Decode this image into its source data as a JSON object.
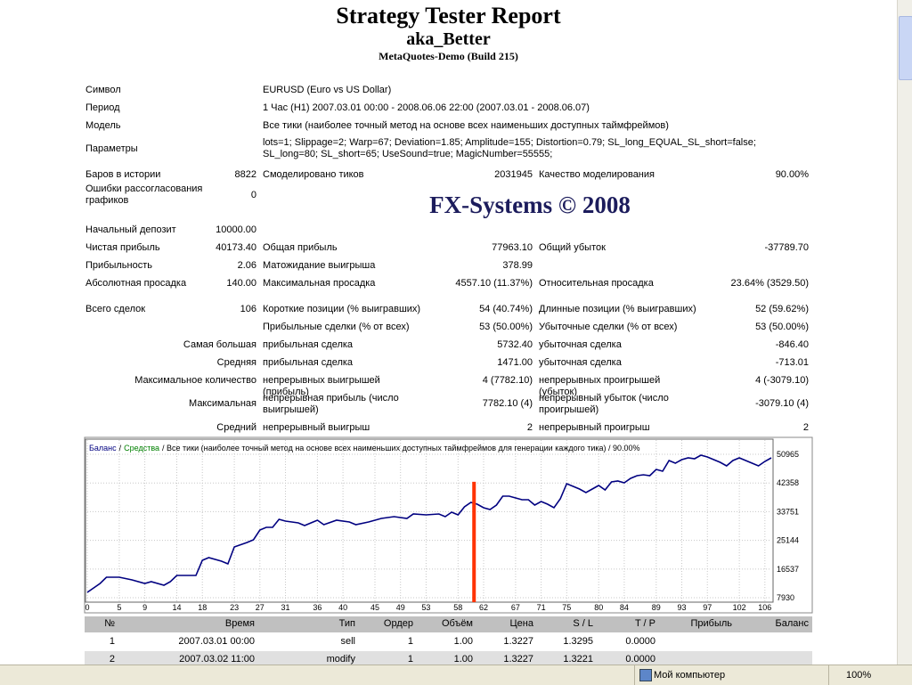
{
  "header": {
    "title": "Strategy Tester Report",
    "subtitle": "aka_Better",
    "build": "MetaQuotes-Demo (Build 215)"
  },
  "watermark": "FX-Systems © 2008",
  "summary": {
    "general": [
      [
        "Символ",
        "EURUSD (Euro vs US Dollar)"
      ],
      [
        "Период",
        "1 Час (H1) 2007.03.01 00:00 - 2008.06.06 22:00 (2007.03.01 - 2008.06.07)"
      ],
      [
        "Модель",
        "Все тики (наиболее точный метод на основе всех наименьших доступных таймфреймов)"
      ],
      [
        "Параметры",
        "lots=1; Slippage=2; Warp=67; Deviation=1.85; Amplitude=155; Distortion=0.79; SL_long_EQUAL_SL_short=false; SL_long=80; SL_short=65; UseSound=true; MagicNumber=55555;"
      ]
    ],
    "stats": [
      [
        "Баров в истории",
        "8822",
        "Смоделировано тиков",
        "2031945",
        "Качество моделирования",
        "90.00%"
      ],
      [
        "Ошибки рассогласования графиков",
        "0",
        null,
        null,
        null,
        null
      ],
      [
        "Начальный депозит",
        "10000.00",
        null,
        null,
        null,
        null
      ],
      [
        "Чистая прибыль",
        "40173.40",
        "Общая прибыль",
        "77963.10",
        "Общий убыток",
        "-37789.70"
      ],
      [
        "Прибыльность",
        "2.06",
        "Матожидание выигрыша",
        "378.99",
        null,
        null
      ],
      [
        "Абсолютная просадка",
        "140.00",
        "Максимальная просадка",
        "4557.10 (11.37%)",
        "Относительная просадка",
        "23.64% (3529.50)"
      ],
      [
        "Всего сделок",
        "106",
        "Короткие позиции (% выигравших)",
        "54 (40.74%)",
        "Длинные позиции (% выигравших)",
        "52 (59.62%)"
      ],
      [
        null,
        null,
        "Прибыльные сделки (% от всех)",
        "53 (50.00%)",
        "Убыточные сделки (% от всех)",
        "53 (50.00%)"
      ]
    ],
    "trades": [
      [
        "Самая большая",
        "прибыльная сделка",
        "5732.40",
        "убыточная сделка",
        "-846.40"
      ],
      [
        "Средняя",
        "прибыльная сделка",
        "1471.00",
        "убыточная сделка",
        "-713.01"
      ],
      [
        "Максимальное количество",
        "непрерывных выигрышей (прибыль)",
        "4 (7782.10)",
        "непрерывных проигрышей (убыток)",
        "4 (-3079.10)"
      ],
      [
        "Максимальная",
        "непрерывная прибыль (число выигрышей)",
        "7782.10 (4)",
        "непрерывный убыток (число проигрышей)",
        "-3079.10 (4)"
      ],
      [
        "Средний",
        "непрерывный выигрыш",
        "2",
        "непрерывный проигрыш",
        "2"
      ]
    ]
  },
  "chart_data": {
    "type": "line",
    "separator": "/",
    "caption": "/ Все тики (наиболее точный метод на основе всех наименьших доступных таймфреймов для генерации каждого тика) / 90.00%",
    "x": [
      0,
      2,
      3,
      5,
      7,
      9,
      10,
      12,
      13,
      14,
      17,
      18,
      19,
      21,
      22,
      23,
      25,
      26,
      27,
      28,
      29,
      30,
      31,
      33,
      34,
      35,
      36,
      37,
      39,
      41,
      42,
      44,
      46,
      48,
      50,
      51,
      53,
      55,
      56,
      57,
      58,
      59,
      60,
      61,
      62,
      63,
      64,
      65,
      66,
      67,
      68,
      69,
      70,
      71,
      72,
      73,
      74,
      75,
      76,
      77,
      78,
      79,
      80,
      81,
      82,
      83,
      84,
      85,
      86,
      87,
      88,
      89,
      90,
      91,
      92,
      93,
      94,
      95,
      96,
      97,
      98,
      99,
      100,
      101,
      102,
      103,
      104,
      105,
      106,
      107
    ],
    "series": [
      {
        "name": "Баланс",
        "color": "#000080",
        "values": [
          9534,
          12207,
          14078,
          14078,
          13276,
          12207,
          12741,
          11672,
          12741,
          14613,
          14613,
          19157,
          19959,
          18889,
          18087,
          23166,
          24503,
          25305,
          28245,
          29047,
          29047,
          31452,
          30918,
          30383,
          29581,
          30383,
          31185,
          29849,
          31185,
          30651,
          29849,
          30651,
          31720,
          32254,
          31720,
          33056,
          32789,
          33056,
          32254,
          33591,
          32789,
          35195,
          36531,
          35997,
          34927,
          34393,
          35729,
          38402,
          38402,
          37868,
          37333,
          37333,
          35729,
          36799,
          35997,
          34927,
          37600,
          42144,
          41343,
          40541,
          39471,
          40541,
          41610,
          40273,
          42679,
          42946,
          42412,
          43748,
          44550,
          44817,
          44550,
          46421,
          45887,
          49094,
          48292,
          49362,
          49896,
          49629,
          50698,
          50163,
          49362,
          48560,
          47490,
          49094,
          49896,
          49094,
          48292,
          47490,
          48827,
          49896
        ]
      },
      {
        "name": "Средства",
        "color": "#008000"
      }
    ],
    "marker": {
      "x": 60.5,
      "y": 42700,
      "color": "#ff3300"
    },
    "xlim": [
      0,
      107
    ],
    "xticks": [
      0,
      5,
      9,
      14,
      18,
      23,
      27,
      31,
      36,
      40,
      45,
      49,
      53,
      58,
      62,
      67,
      71,
      75,
      80,
      84,
      89,
      93,
      97,
      102,
      106
    ],
    "ylim": [
      6600,
      55240
    ],
    "yticks": [
      7930,
      16537,
      25144,
      33751,
      42358,
      50965
    ],
    "grid": true
  },
  "orders": {
    "columns": [
      "№",
      "Время",
      "Тип",
      "Ордер",
      "Объём",
      "Цена",
      "S / L",
      "T / P",
      "Прибыль",
      "Баланс"
    ],
    "rows": [
      [
        "1",
        "2007.03.01 00:00",
        "sell",
        "1",
        "1.00",
        "1.3227",
        "1.3295",
        "0.0000"
      ],
      [
        "2",
        "2007.03.02 11:00",
        "modify",
        "1",
        "1.00",
        "1.3227",
        "1.3221",
        "0.0000"
      ]
    ]
  },
  "status_bar": {
    "zone": "Мой компьютер",
    "zoom": "100%"
  }
}
